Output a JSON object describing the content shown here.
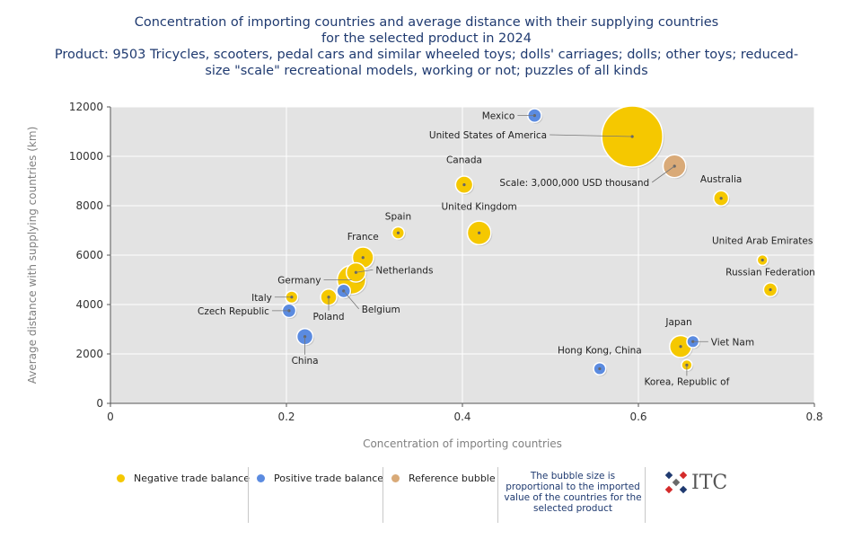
{
  "title": {
    "line1": "Concentration of importing countries and average distance with their supplying countries",
    "line2": "for the selected product in 2024",
    "line3": "Product: 9503 Tricycles, scooters, pedal cars and similar wheeled toys; dolls' carriages; dolls; other toys; reduced-",
    "line4": "size \"scale\" recreational models, working or not; puzzles of all kinds"
  },
  "chart_data": {
    "type": "scatter",
    "xlabel": "Concentration of importing countries",
    "ylabel": "Average distance with supplying countries (km)",
    "xlim": [
      0,
      0.8
    ],
    "ylim": [
      0,
      12000
    ],
    "xticks": [
      "0",
      "0.2",
      "0.4",
      "0.6",
      "0.8"
    ],
    "yticks": [
      "0",
      "2000",
      "4000",
      "6000",
      "8000",
      "10000",
      "12000"
    ],
    "grid": true,
    "colors": {
      "negative": "#f5c800",
      "positive": "#5b8be0",
      "reference": "#d9aa78"
    },
    "series": [
      {
        "name": "Negative trade balance",
        "points": [
          {
            "label": "United States of America",
            "x": 0.593,
            "y": 10800,
            "size": 100
          },
          {
            "label": "Canada",
            "x": 0.402,
            "y": 8850,
            "size": 8
          },
          {
            "label": "Australia",
            "x": 0.694,
            "y": 8300,
            "size": 6
          },
          {
            "label": "United Kingdom",
            "x": 0.419,
            "y": 6900,
            "size": 15
          },
          {
            "label": "Spain",
            "x": 0.327,
            "y": 6900,
            "size": 4
          },
          {
            "label": "France",
            "x": 0.287,
            "y": 5900,
            "size": 12
          },
          {
            "label": "Germany",
            "x": 0.274,
            "y": 5000,
            "size": 22
          },
          {
            "label": "Netherlands",
            "x": 0.279,
            "y": 5300,
            "size": 10
          },
          {
            "label": "Italy",
            "x": 0.206,
            "y": 4300,
            "size": 4
          },
          {
            "label": "Poland",
            "x": 0.248,
            "y": 4300,
            "size": 7
          },
          {
            "label": "United Arab Emirates",
            "x": 0.741,
            "y": 5800,
            "size": 3
          },
          {
            "label": "Russian Federation",
            "x": 0.75,
            "y": 4600,
            "size": 5
          },
          {
            "label": "Japan",
            "x": 0.648,
            "y": 2300,
            "size": 13
          },
          {
            "label": "Korea, Republic of",
            "x": 0.655,
            "y": 1550,
            "size": 3
          }
        ]
      },
      {
        "name": "Positive trade balance",
        "points": [
          {
            "label": "Mexico",
            "x": 0.482,
            "y": 11650,
            "size": 5
          },
          {
            "label": "Belgium",
            "x": 0.265,
            "y": 4550,
            "size": 5
          },
          {
            "label": "Czech Republic",
            "x": 0.203,
            "y": 3750,
            "size": 5
          },
          {
            "label": "China",
            "x": 0.221,
            "y": 2700,
            "size": 7
          },
          {
            "label": "Viet Nam",
            "x": 0.662,
            "y": 2500,
            "size": 4
          },
          {
            "label": "Hong Kong, China",
            "x": 0.556,
            "y": 1400,
            "size": 4
          }
        ]
      },
      {
        "name": "Reference bubble",
        "points": [
          {
            "label": "Scale: 3,000,000 USD thousand",
            "x": 0.641,
            "y": 9600,
            "size": 14
          }
        ]
      }
    ]
  },
  "legend": {
    "negative": "Negative trade balance",
    "positive": "Positive trade balance",
    "reference": "Reference bubble",
    "note": "The bubble size is proportional to the imported value of the countries for the selected product"
  },
  "logo": {
    "text": "ITC"
  }
}
